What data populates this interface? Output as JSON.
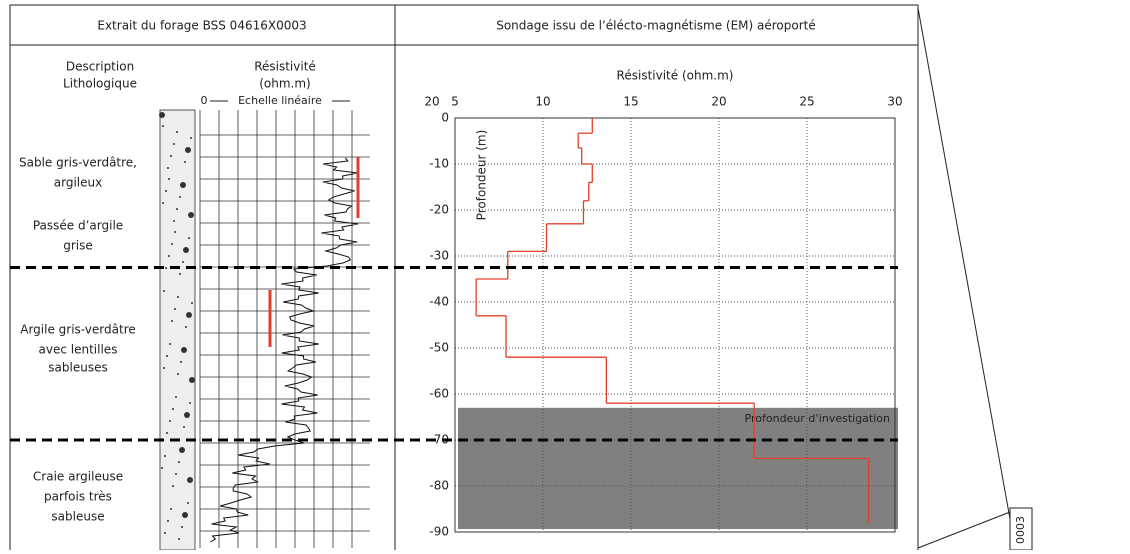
{
  "header": {
    "left_title": "Extrait du forage BSS 04616X0003",
    "right_title": "Sondage  issu de l’élécto-magnétisme (EM) aéroporté"
  },
  "log": {
    "description_title": [
      "Description",
      "Lithologique"
    ],
    "resistivity_title": [
      "Résistivité",
      "(ohm.m)"
    ],
    "scale_zero": "0",
    "scale_label": "Echelle linéaire",
    "lithology": [
      [
        "Sable gris-verdâtre,",
        "argileux"
      ],
      [
        "Passée d’argile",
        "grise"
      ],
      [
        "Argile gris-verdâtre",
        "avec lentilles",
        "sableuses"
      ],
      [
        "Craie argileuse",
        "parfois très",
        "sableuse"
      ]
    ]
  },
  "side_label": "0003",
  "chart_data": {
    "type": "step",
    "x_label": "Résistivité (ohm.m)",
    "y_label": "Profondeur (m)",
    "stray_x_label": "20",
    "xlim": [
      5,
      30
    ],
    "xticks": [
      5,
      10,
      15,
      20,
      25,
      30
    ],
    "ylim": [
      -90,
      0
    ],
    "yticks": [
      0,
      -10,
      -20,
      -30,
      -40,
      -50,
      -60,
      -70,
      -80,
      -90
    ],
    "grid": true,
    "color": "#e0402a",
    "depth": [
      0,
      -3.3,
      -6.5,
      -10,
      -14,
      -18,
      -23,
      -29,
      -35,
      -43,
      -52,
      -62,
      -74,
      -88
    ],
    "resistivity": [
      12.8,
      12.0,
      12.2,
      12.8,
      12.6,
      12.3,
      10.2,
      8.0,
      6.2,
      7.9,
      13.6,
      22.0,
      28.5
    ],
    "investigation_depth": -63,
    "investigation_label": "Profondeur d’investigation",
    "boundaries": [
      -32.5,
      -70
    ]
  }
}
